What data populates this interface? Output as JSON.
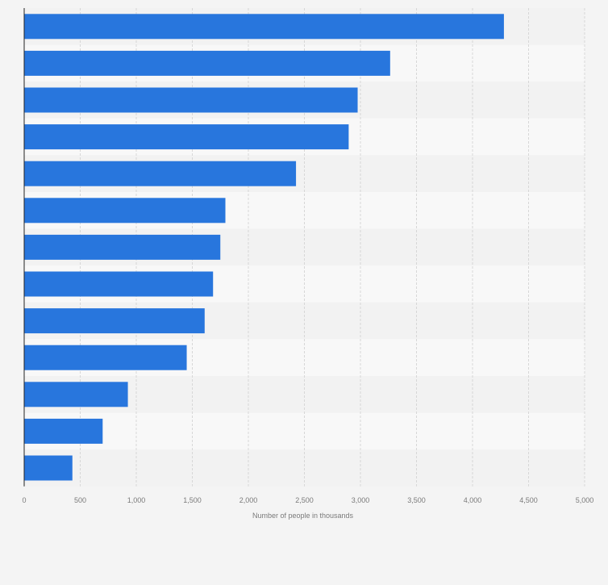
{
  "chart_data": {
    "type": "bar",
    "orientation": "horizontal",
    "title": "",
    "xlabel": "Number of people in thousands",
    "ylabel": "",
    "categories": [
      "",
      "",
      "",
      "",
      "",
      "",
      "",
      "",
      "",
      "",
      "",
      "",
      ""
    ],
    "values": [
      4280,
      3265,
      2975,
      2895,
      2425,
      1795,
      1750,
      1685,
      1610,
      1450,
      925,
      700,
      430
    ],
    "xlim": [
      0,
      5000
    ],
    "xticks": [
      0,
      500,
      1000,
      1500,
      2000,
      2500,
      3000,
      3500,
      4000,
      4500,
      5000
    ],
    "xtick_labels": [
      "0",
      "500",
      "1,000",
      "1,500",
      "2,000",
      "2,500",
      "3,000",
      "3,500",
      "4,000",
      "4,500",
      "5,000"
    ],
    "grid": true,
    "legend": "none",
    "colors": {
      "bar": "#2876dd",
      "band_dark": "#f2f2f2",
      "band_light": "#f8f8f8",
      "grid": "#d7d7d7",
      "axis": "#222222",
      "tick_text": "#7a7a7a",
      "page_background": "#f4f4f4"
    }
  }
}
